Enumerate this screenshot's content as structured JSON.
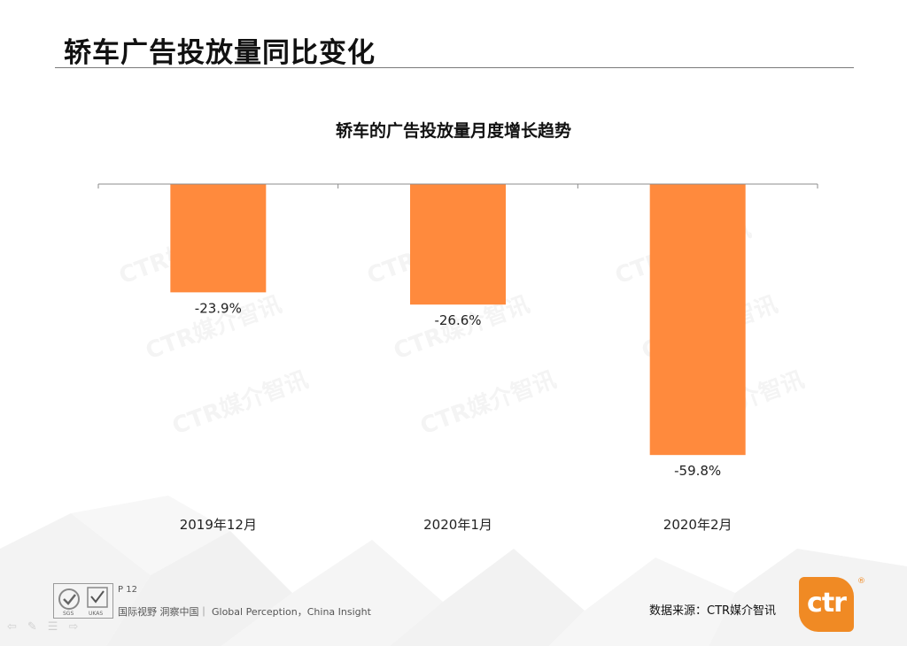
{
  "slide": {
    "title": "轿车广告投放量同比变化",
    "page": "P 12",
    "tagline": "国际视野  洞察中国｜ Global Perception，China Insight",
    "source": "数据来源：CTR媒介智讯",
    "logo_text": "ctr",
    "logo_mark": "®",
    "watermark": "CTR媒介智讯"
  },
  "chart_data": {
    "type": "bar",
    "title": "轿车的广告投放量月度增长趋势",
    "categories": [
      "2019年12月",
      "2020年1月",
      "2020年2月"
    ],
    "values": [
      -23.9,
      -26.6,
      -59.8
    ],
    "data_labels": [
      "-23.9%",
      "-26.6%",
      "-59.8%"
    ],
    "ylim": [
      -70,
      0
    ],
    "grid": false,
    "bar_color": "#ff8a3d"
  },
  "colors": {
    "accent": "#ff8a3d",
    "logo": "#f08a24"
  }
}
